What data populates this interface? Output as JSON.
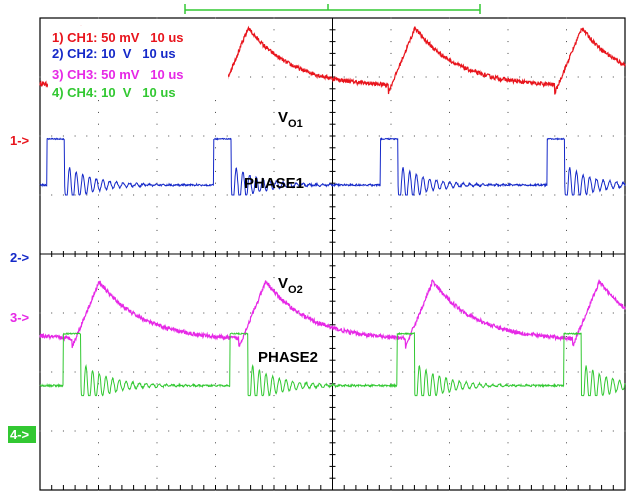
{
  "chart_data": {
    "type": "line",
    "title": "",
    "xlabel": "",
    "ylabel": "",
    "grid": true,
    "x_divisions": 10,
    "y_divisions": 8,
    "time_per_div_us": 10,
    "legend": [
      {
        "text": "1) CH1: 50 mV   10 us",
        "color": "#e8141c"
      },
      {
        "text": "2) CH2: 10  V   10 us",
        "color": "#1428c8"
      },
      {
        "text": "3) CH3: 50 mV   10 us",
        "color": "#e628e6"
      },
      {
        "text": "4) CH4: 10  V   10 us",
        "color": "#32c832"
      }
    ],
    "signal_labels": [
      {
        "main": "V",
        "sub": "O1"
      },
      {
        "main": "PHASE1",
        "sub": ""
      },
      {
        "main": "V",
        "sub": "O2"
      },
      {
        "main": "PHASE2",
        "sub": ""
      }
    ],
    "channel_markers": [
      {
        "text": "1->",
        "color": "#e8141c"
      },
      {
        "text": "2->",
        "color": "#1428c8"
      },
      {
        "text": "3->",
        "color": "#e628e6"
      },
      {
        "text": "4->",
        "color": "#32c832"
      }
    ],
    "series": [
      {
        "channel": 1,
        "kind": "ripple",
        "color": "#e8141c",
        "baseline_div": 1.15,
        "peak_div": 0.95,
        "trough_div": -0.12,
        "period_div": 2.85,
        "first_pulse_div": 0.25
      },
      {
        "channel": 2,
        "kind": "switch",
        "color": "#1428c8",
        "low_div": 2.95,
        "high_div": 2.05,
        "ring_amp_div": 0.35,
        "period_div": 2.85,
        "first_pulse_div": 0.12,
        "pulse_width_div": 0.3
      },
      {
        "channel": 3,
        "kind": "ripple",
        "color": "#e628e6",
        "baseline_div": 5.45,
        "peak_div": 0.95,
        "trough_div": -0.12,
        "period_div": 2.85,
        "first_pulse_div": 0.55
      },
      {
        "channel": 4,
        "kind": "switch",
        "color": "#32c832",
        "low_div": 6.35,
        "high_div": 5.35,
        "ring_amp_div": 0.4,
        "period_div": 2.85,
        "first_pulse_div": 0.4,
        "pulse_width_div": 0.3
      }
    ]
  }
}
